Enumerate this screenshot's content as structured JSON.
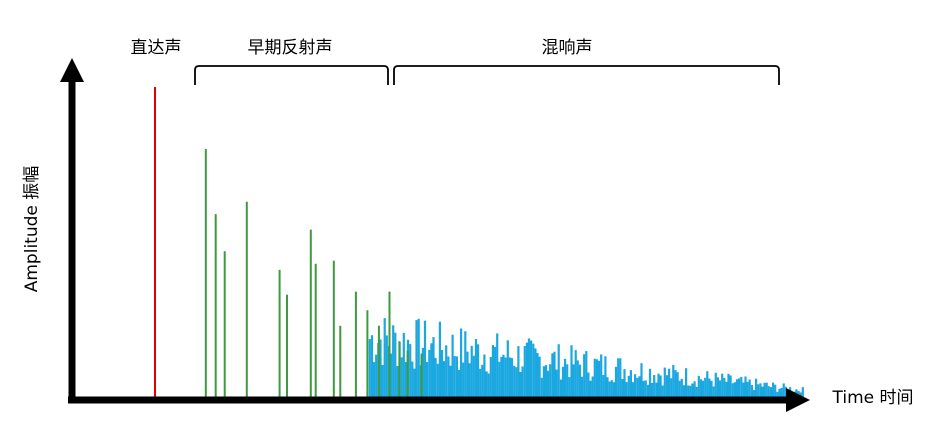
{
  "labels": {
    "direct": "直达声",
    "early": "早期反射声",
    "reverb": "混响声",
    "y_axis": "Amplitude 振幅",
    "x_axis": "Time 时间"
  },
  "colors": {
    "axis": "#000000",
    "direct": "#e00000",
    "early": "#3f9a3f",
    "reverb": "#1ba7e0",
    "text": "#000000"
  },
  "direct_sound": {
    "time": 1.0,
    "amplitude": 1.0
  },
  "early_reflections": [
    {
      "time": 1.62,
      "amplitude": 0.8
    },
    {
      "time": 1.74,
      "amplitude": 0.59
    },
    {
      "time": 1.85,
      "amplitude": 0.47
    },
    {
      "time": 2.12,
      "amplitude": 0.63
    },
    {
      "time": 2.52,
      "amplitude": 0.41
    },
    {
      "time": 2.61,
      "amplitude": 0.33
    },
    {
      "time": 2.9,
      "amplitude": 0.54
    },
    {
      "time": 2.96,
      "amplitude": 0.43
    },
    {
      "time": 3.18,
      "amplitude": 0.44
    },
    {
      "time": 3.26,
      "amplitude": 0.23
    },
    {
      "time": 3.45,
      "amplitude": 0.34
    },
    {
      "time": 3.59,
      "amplitude": 0.28
    },
    {
      "time": 3.73,
      "amplitude": 0.23
    },
    {
      "time": 3.86,
      "amplitude": 0.34
    },
    {
      "time": 3.98,
      "amplitude": 0.18
    },
    {
      "time": 4.08,
      "amplitude": 0.15
    },
    {
      "time": 4.25,
      "amplitude": 0.14
    }
  ],
  "reverb": {
    "start_time": 3.62,
    "end_time": 8.9,
    "count": 205,
    "start_amplitude": 0.26,
    "end_amplitude": 0.03
  }
}
